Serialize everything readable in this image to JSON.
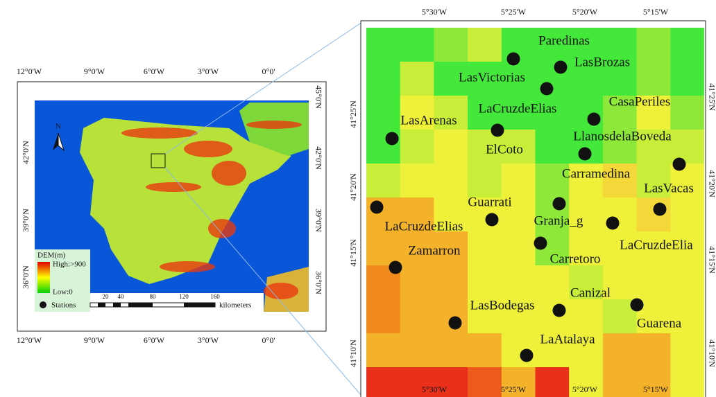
{
  "left_map": {
    "top_labels": [
      "12°0'W",
      "9°0'W",
      "6°0'W",
      "3°0'W",
      "0°0'"
    ],
    "bottom_labels": [
      "12°0'W",
      "9°0'W",
      "6°0'W",
      "3°0'W",
      "0°0'"
    ],
    "left_labels": [
      "42°0'N",
      "39°0'N",
      "36°0'N"
    ],
    "right_labels": [
      "45°0'N",
      "42°0'N",
      "39°0'N",
      "36°0'N"
    ],
    "north": "N",
    "legend": {
      "title": "DEM(m)",
      "high": "High:>900",
      "low": "Low:0",
      "stations": "Stations"
    },
    "scale": {
      "ticks": [
        "20",
        "40",
        "80",
        "120",
        "160"
      ],
      "unit": "kilometers"
    }
  },
  "right_map": {
    "top_labels": [
      "5°30'W",
      "5°25'W",
      "5°20'W",
      "5°15'W"
    ],
    "bottom_labels": [
      "5°30'W",
      "5°25'W",
      "5°20'W",
      "5°15'W"
    ],
    "left_labels": [
      "41°25'N",
      "41°20'N",
      "41°15'N",
      "41°10'N"
    ],
    "right_labels": [
      "41°25'N",
      "41°20'N",
      "41°15'N",
      "41°10'N"
    ],
    "stations": [
      "Paredinas",
      "LasBrozas",
      "LasVictorias",
      "LaCruzdeElias",
      "CasaPeriles",
      "LasArenas",
      "LlanosdelaBoveda",
      "ElCoto",
      "Carramedina",
      "LasVacas",
      "Guarrati",
      "Granja_g",
      "LaCruzdeElias",
      "LaCruzdeElia",
      "Zamarron",
      "Carretoro",
      "Canizal",
      "LasBodegas",
      "Guarena",
      "LaAtalaya"
    ]
  }
}
